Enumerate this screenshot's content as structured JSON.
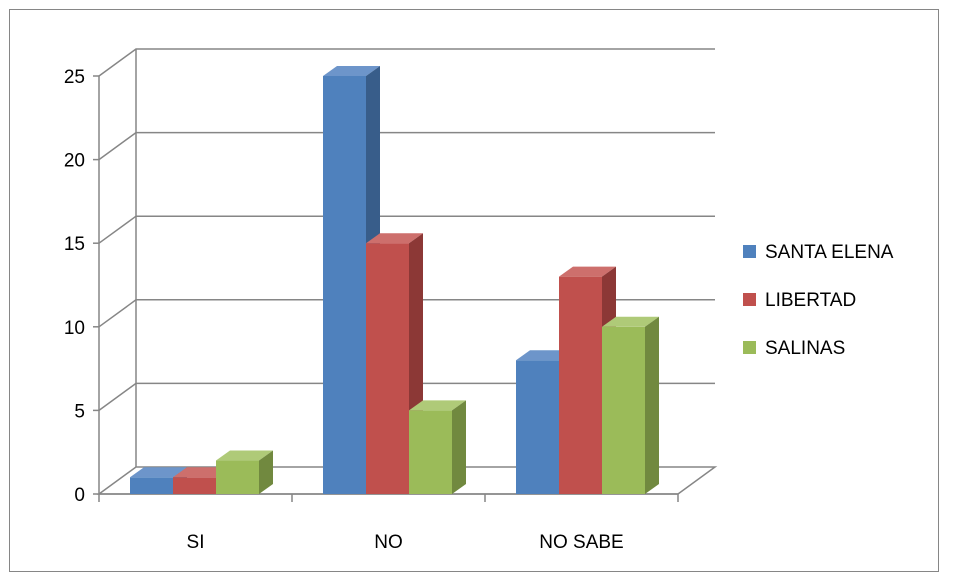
{
  "chart_data": {
    "type": "bar",
    "style": "3d-clustered-column",
    "title": "",
    "xlabel": "",
    "ylabel": "",
    "categories": [
      "SI",
      "NO",
      "NO SABE"
    ],
    "series": [
      {
        "name": "SANTA ELENA",
        "values": [
          1,
          25,
          8
        ],
        "color": "#4F81BD",
        "top": "#6D95CA",
        "side": "#385D8A"
      },
      {
        "name": "LIBERTAD",
        "values": [
          1,
          15,
          13
        ],
        "color": "#C0504D",
        "top": "#CD6F6C",
        "side": "#8C3836"
      },
      {
        "name": "SALINAS",
        "values": [
          2,
          5,
          10
        ],
        "color": "#9BBB59",
        "top": "#AFCA78",
        "side": "#71893F"
      }
    ],
    "ylim": [
      0,
      25
    ],
    "yticks": [
      0,
      5,
      10,
      15,
      20,
      25
    ],
    "grid": true,
    "legend": "right"
  }
}
